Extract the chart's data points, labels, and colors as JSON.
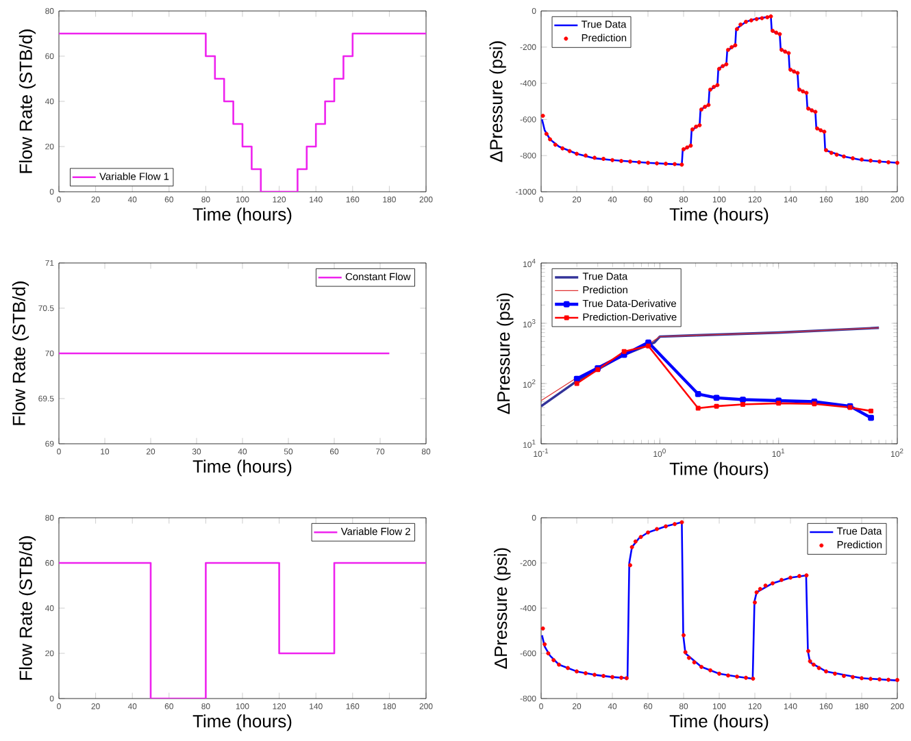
{
  "chart_data": [
    {
      "type": "line",
      "xlabel": "Time (hours)",
      "ylabel": "Flow Rate (STB/d)",
      "xlim": [
        0,
        200
      ],
      "ylim": [
        0,
        80
      ],
      "xticks": [
        0,
        20,
        40,
        60,
        80,
        100,
        120,
        140,
        160,
        180,
        200
      ],
      "yticks": [
        0,
        20,
        40,
        60,
        80
      ],
      "legend": "bottom left",
      "x": [
        0,
        80,
        80,
        85,
        85,
        90,
        90,
        95,
        95,
        100,
        100,
        105,
        105,
        110,
        110,
        130,
        130,
        135,
        135,
        140,
        140,
        145,
        145,
        150,
        150,
        155,
        155,
        160,
        160,
        200
      ],
      "series": [
        {
          "name": "Variable Flow 1",
          "color": "#ee22ee",
          "values": [
            70,
            70,
            60,
            60,
            50,
            50,
            40,
            40,
            30,
            30,
            20,
            20,
            10,
            10,
            0,
            0,
            10,
            10,
            20,
            20,
            30,
            30,
            40,
            40,
            50,
            50,
            60,
            60,
            70,
            70
          ]
        }
      ]
    },
    {
      "type": "line",
      "xlabel": "Time (hours)",
      "ylabel": "ΔPressure (psi)",
      "xlim": [
        0,
        200
      ],
      "ylim": [
        -1000,
        0
      ],
      "xticks": [
        0,
        20,
        40,
        60,
        80,
        100,
        120,
        140,
        160,
        180,
        200
      ],
      "yticks": [
        -1000,
        -800,
        -600,
        -400,
        -200,
        0
      ],
      "legend": "top left",
      "series": [
        {
          "name": "True Data",
          "color": "#0000ff",
          "x": [
            0.5,
            2,
            5,
            10,
            20,
            30,
            40,
            60,
            79,
            79.5,
            84,
            84.5,
            89,
            89.5,
            94,
            94.5,
            99,
            99.5,
            104,
            104.5,
            109,
            109.5,
            115,
            120,
            129,
            129.5,
            134,
            134.5,
            139,
            139.5,
            144,
            144.5,
            149,
            149.5,
            154,
            154.5,
            159,
            159.5,
            170,
            180,
            200
          ],
          "values": [
            -600,
            -660,
            -710,
            -750,
            -790,
            -815,
            -825,
            -840,
            -850,
            -770,
            -745,
            -660,
            -630,
            -545,
            -520,
            -440,
            -410,
            -320,
            -295,
            -220,
            -190,
            -100,
            -60,
            -45,
            -30,
            -110,
            -130,
            -210,
            -235,
            -320,
            -345,
            -430,
            -455,
            -535,
            -560,
            -645,
            -670,
            -770,
            -805,
            -825,
            -840
          ]
        },
        {
          "name": "Prediction",
          "type": "scatter",
          "marker": "circle",
          "color": "#ff0000",
          "x": [
            1,
            3,
            5,
            8,
            12,
            16,
            20,
            25,
            30,
            35,
            40,
            45,
            50,
            55,
            60,
            65,
            70,
            75,
            79,
            80,
            82,
            84,
            85,
            87,
            89,
            90,
            92,
            94,
            95,
            97,
            99,
            100,
            102,
            104,
            105,
            107,
            109,
            110,
            112,
            115,
            118,
            121,
            124,
            127,
            129,
            130,
            132,
            134,
            135,
            137,
            139,
            140,
            142,
            144,
            145,
            147,
            149,
            150,
            152,
            154,
            155,
            157,
            159,
            160,
            163,
            166,
            170,
            175,
            180,
            185,
            190,
            195,
            200
          ],
          "values": [
            -580,
            -680,
            -710,
            -740,
            -760,
            -775,
            -790,
            -800,
            -812,
            -818,
            -825,
            -830,
            -833,
            -837,
            -840,
            -843,
            -845,
            -847,
            -850,
            -765,
            -755,
            -745,
            -655,
            -640,
            -632,
            -545,
            -530,
            -520,
            -435,
            -420,
            -410,
            -320,
            -305,
            -295,
            -215,
            -200,
            -190,
            -100,
            -75,
            -60,
            -52,
            -45,
            -40,
            -35,
            -30,
            -110,
            -120,
            -128,
            -215,
            -225,
            -233,
            -325,
            -335,
            -343,
            -435,
            -445,
            -453,
            -540,
            -550,
            -558,
            -650,
            -660,
            -668,
            -770,
            -785,
            -795,
            -805,
            -815,
            -822,
            -828,
            -833,
            -837,
            -840
          ]
        }
      ]
    },
    {
      "type": "line",
      "xlabel": "Time (hours)",
      "ylabel": "Flow Rate (STB/d)",
      "xlim": [
        0,
        80
      ],
      "ylim": [
        69,
        71
      ],
      "xticks": [
        0,
        10,
        20,
        30,
        40,
        50,
        60,
        70,
        80
      ],
      "yticks": [
        69,
        69.5,
        70,
        70.5,
        71
      ],
      "legend": "top right",
      "x": [
        0,
        72
      ],
      "series": [
        {
          "name": "Constant Flow",
          "color": "#ee22ee",
          "values": [
            70,
            70
          ]
        }
      ]
    },
    {
      "type": "line",
      "xlabel": "Time (hours)",
      "ylabel": "ΔPressure (psi)",
      "log": "xy",
      "xlim": [
        0.1,
        100
      ],
      "ylim": [
        10,
        10000
      ],
      "legend": "top left",
      "xticks": [
        {
          "value": 0.1,
          "label": "10$^{-1}$"
        },
        {
          "value": 1,
          "label": "10$^{0}$"
        },
        {
          "value": 10,
          "label": "10$^{1}$"
        },
        {
          "value": 100,
          "label": "10$^{2}$"
        }
      ],
      "yticks": [
        {
          "value": 10,
          "label": "10$^{1}$"
        },
        {
          "value": 100,
          "label": "10$^{2}$"
        },
        {
          "value": 1000,
          "label": "10$^{3}$"
        },
        {
          "value": 10000,
          "label": "10$^{4}$"
        }
      ],
      "series": [
        {
          "name": "True Data",
          "color": "#333399",
          "x": [
            0.1,
            0.2,
            0.5,
            0.9,
            1,
            2,
            10,
            70
          ],
          "values": [
            42,
            110,
            300,
            480,
            600,
            630,
            700,
            840
          ]
        },
        {
          "name": "Prediction",
          "color": "#e03030",
          "x": [
            0.1,
            0.2,
            0.5,
            0.8,
            1,
            2,
            10,
            70
          ],
          "values": [
            52,
            125,
            320,
            450,
            600,
            630,
            700,
            840
          ]
        },
        {
          "name": "True Data-Derivative",
          "marker": "square",
          "color": "#0000ff",
          "x": [
            0.2,
            0.3,
            0.5,
            0.8,
            2.1,
            3,
            5,
            10,
            20,
            40,
            60
          ],
          "values": [
            120,
            180,
            300,
            480,
            67,
            58,
            54,
            52,
            50,
            42,
            27
          ]
        },
        {
          "name": "Prediction-Derivative",
          "marker": "square",
          "color": "#ff0000",
          "x": [
            0.2,
            0.3,
            0.5,
            0.8,
            2.1,
            3,
            5,
            10,
            20,
            40,
            60
          ],
          "values": [
            100,
            170,
            340,
            420,
            39,
            42,
            45,
            47,
            46,
            40,
            35
          ]
        }
      ]
    },
    {
      "type": "line",
      "xlabel": "Time (hours)",
      "ylabel": "Flow Rate (STB/d)",
      "xlim": [
        0,
        200
      ],
      "ylim": [
        0,
        80
      ],
      "xticks": [
        0,
        20,
        40,
        60,
        80,
        100,
        120,
        140,
        160,
        180,
        200
      ],
      "yticks": [
        0,
        20,
        40,
        60,
        80
      ],
      "legend": "top right",
      "x": [
        0,
        50,
        50,
        80,
        80,
        120,
        120,
        150,
        150,
        200
      ],
      "series": [
        {
          "name": "Variable Flow 2",
          "color": "#ee22ee",
          "values": [
            60,
            60,
            0,
            0,
            60,
            60,
            20,
            20,
            60,
            60
          ]
        }
      ]
    },
    {
      "type": "line",
      "xlabel": "Time (hours)",
      "ylabel": "ΔPressure (psi)",
      "xlim": [
        0,
        200
      ],
      "ylim": [
        -800,
        0
      ],
      "xticks": [
        0,
        20,
        40,
        60,
        80,
        100,
        120,
        140,
        160,
        180,
        200
      ],
      "yticks": [
        -800,
        -600,
        -400,
        -200,
        0
      ],
      "legend": "top right",
      "series": [
        {
          "name": "True Data",
          "color": "#0000ff",
          "x": [
            0.5,
            2,
            5,
            10,
            20,
            30,
            40,
            48.5,
            49.5,
            51,
            55,
            60,
            70,
            79,
            79.8,
            81,
            90,
            100,
            110,
            118.8,
            119.8,
            121,
            130,
            140,
            148.8,
            149.8,
            151,
            160,
            180,
            200
          ],
          "values": [
            -520,
            -570,
            -610,
            -650,
            -680,
            -695,
            -705,
            -710,
            -200,
            -130,
            -90,
            -65,
            -38,
            -20,
            -520,
            -600,
            -660,
            -690,
            -703,
            -712,
            -370,
            -330,
            -290,
            -265,
            -255,
            -590,
            -640,
            -680,
            -710,
            -720
          ]
        },
        {
          "name": "Prediction",
          "type": "scatter",
          "marker": "circle",
          "color": "#ff0000",
          "x": [
            1,
            2,
            4,
            7,
            10,
            15,
            20,
            25,
            30,
            35,
            40,
            45,
            48,
            50,
            51,
            53,
            56,
            60,
            65,
            70,
            75,
            79,
            80,
            81,
            83,
            86,
            90,
            95,
            100,
            105,
            110,
            115,
            119,
            120,
            121,
            123,
            126,
            130,
            135,
            140,
            145,
            149,
            150,
            151,
            153,
            156,
            160,
            165,
            170,
            175,
            180,
            185,
            190,
            195,
            200
          ],
          "values": [
            -490,
            -560,
            -600,
            -630,
            -650,
            -665,
            -680,
            -688,
            -695,
            -700,
            -705,
            -708,
            -710,
            -210,
            -130,
            -105,
            -85,
            -65,
            -50,
            -38,
            -28,
            -20,
            -520,
            -595,
            -620,
            -640,
            -660,
            -675,
            -690,
            -698,
            -703,
            -708,
            -712,
            -375,
            -330,
            -315,
            -300,
            -290,
            -275,
            -265,
            -258,
            -255,
            -590,
            -635,
            -650,
            -665,
            -680,
            -690,
            -700,
            -705,
            -710,
            -713,
            -715,
            -717,
            -718
          ]
        }
      ]
    }
  ]
}
